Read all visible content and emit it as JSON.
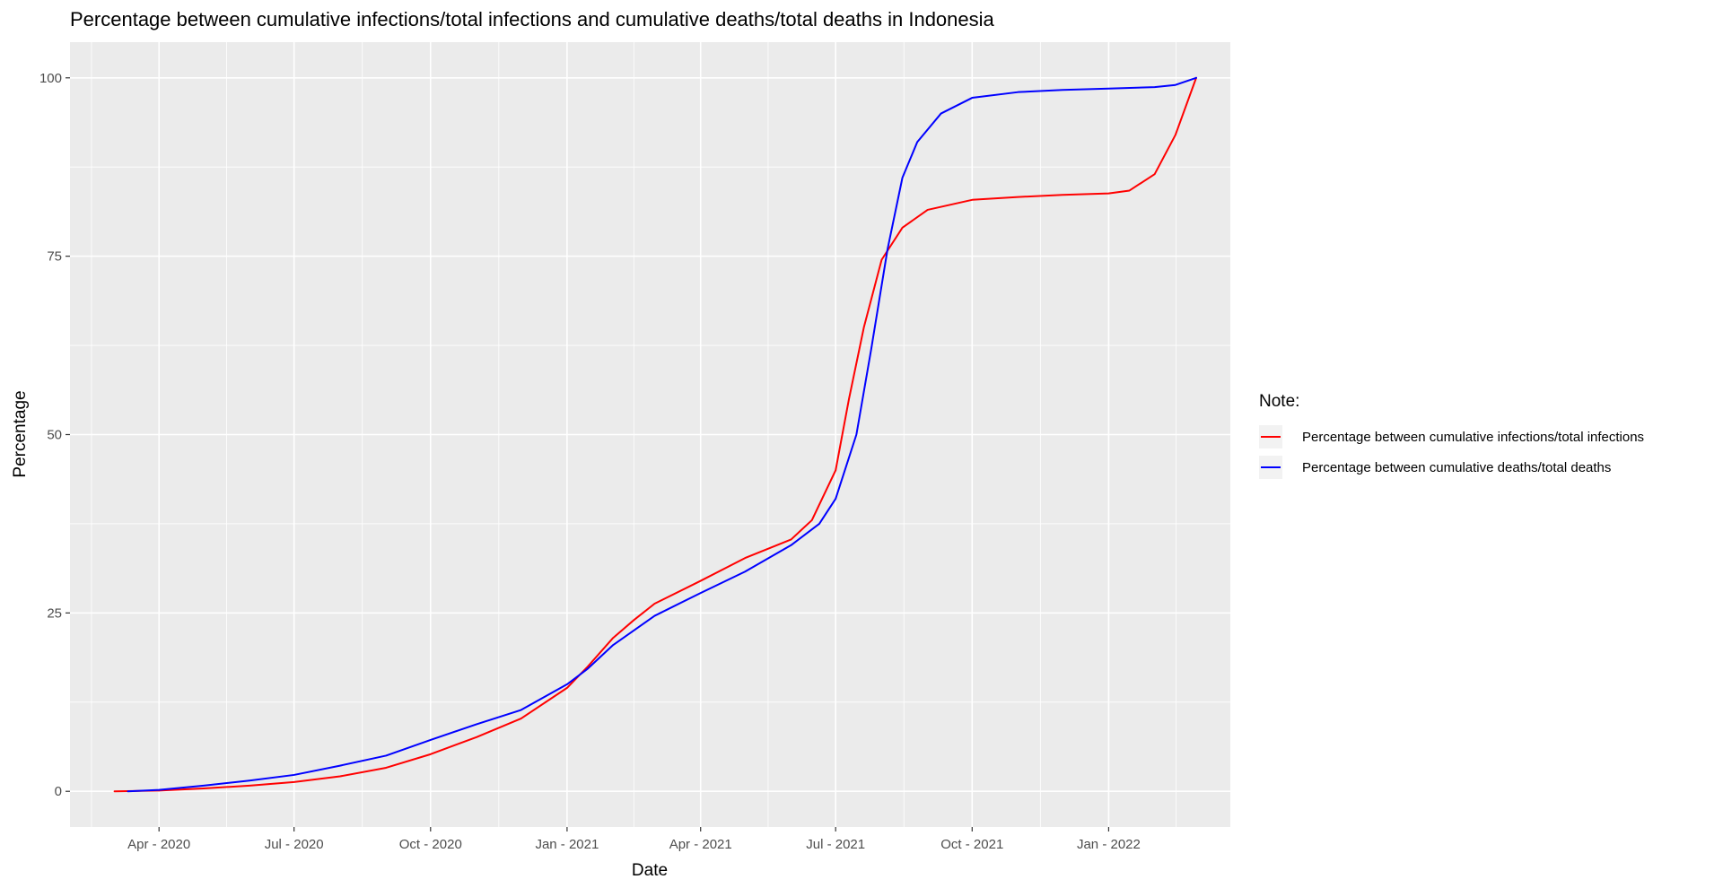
{
  "chart_data": {
    "type": "line",
    "title": "Percentage between cumulative infections/total infections and cumulative deaths/total deaths in Indonesia",
    "xlabel": "Date",
    "ylabel": "Percentage",
    "xlim": [
      "2020-02-01",
      "2022-03-24"
    ],
    "ylim": [
      -5,
      105
    ],
    "x_ticks": [
      {
        "date": "2020-04-01",
        "label": "Apr - 2020"
      },
      {
        "date": "2020-07-01",
        "label": "Jul - 2020"
      },
      {
        "date": "2020-10-01",
        "label": "Oct - 2020"
      },
      {
        "date": "2021-01-01",
        "label": "Jan - 2021"
      },
      {
        "date": "2021-04-01",
        "label": "Apr - 2021"
      },
      {
        "date": "2021-07-01",
        "label": "Jul - 2021"
      },
      {
        "date": "2021-10-01",
        "label": "Oct - 2021"
      },
      {
        "date": "2022-01-01",
        "label": "Jan - 2022"
      }
    ],
    "y_ticks": [
      0,
      25,
      50,
      75,
      100
    ],
    "grid": true,
    "panel_background": "#ebebeb",
    "legend": {
      "title": "Note:",
      "position": "right"
    },
    "series": [
      {
        "name": "Percentage between cumulative infections/total infections",
        "color": "#ff0000",
        "points": [
          {
            "x": "2020-03-02",
            "y": 0
          },
          {
            "x": "2020-04-01",
            "y": 0.1
          },
          {
            "x": "2020-05-01",
            "y": 0.4
          },
          {
            "x": "2020-06-01",
            "y": 0.8
          },
          {
            "x": "2020-07-01",
            "y": 1.3
          },
          {
            "x": "2020-08-01",
            "y": 2.1
          },
          {
            "x": "2020-09-01",
            "y": 3.3
          },
          {
            "x": "2020-10-01",
            "y": 5.2
          },
          {
            "x": "2020-11-01",
            "y": 7.6
          },
          {
            "x": "2020-12-01",
            "y": 10.2
          },
          {
            "x": "2021-01-01",
            "y": 14.5
          },
          {
            "x": "2021-01-15",
            "y": 17.5
          },
          {
            "x": "2021-02-01",
            "y": 21.5
          },
          {
            "x": "2021-02-15",
            "y": 24.0
          },
          {
            "x": "2021-03-01",
            "y": 26.3
          },
          {
            "x": "2021-04-01",
            "y": 29.5
          },
          {
            "x": "2021-05-01",
            "y": 32.7
          },
          {
            "x": "2021-06-01",
            "y": 35.3
          },
          {
            "x": "2021-06-15",
            "y": 38.0
          },
          {
            "x": "2021-07-01",
            "y": 45.0
          },
          {
            "x": "2021-07-10",
            "y": 55.0
          },
          {
            "x": "2021-07-20",
            "y": 65.0
          },
          {
            "x": "2021-08-01",
            "y": 74.5
          },
          {
            "x": "2021-08-15",
            "y": 79.0
          },
          {
            "x": "2021-09-01",
            "y": 81.5
          },
          {
            "x": "2021-10-01",
            "y": 82.9
          },
          {
            "x": "2021-11-01",
            "y": 83.3
          },
          {
            "x": "2021-12-01",
            "y": 83.6
          },
          {
            "x": "2022-01-01",
            "y": 83.8
          },
          {
            "x": "2022-01-15",
            "y": 84.2
          },
          {
            "x": "2022-02-01",
            "y": 86.5
          },
          {
            "x": "2022-02-15",
            "y": 92.0
          },
          {
            "x": "2022-03-01",
            "y": 100
          }
        ]
      },
      {
        "name": "Percentage between cumulative deaths/total deaths",
        "color": "#0000ff",
        "points": [
          {
            "x": "2020-03-11",
            "y": 0
          },
          {
            "x": "2020-04-01",
            "y": 0.2
          },
          {
            "x": "2020-05-01",
            "y": 0.8
          },
          {
            "x": "2020-06-01",
            "y": 1.5
          },
          {
            "x": "2020-07-01",
            "y": 2.3
          },
          {
            "x": "2020-08-01",
            "y": 3.6
          },
          {
            "x": "2020-09-01",
            "y": 5.0
          },
          {
            "x": "2020-10-01",
            "y": 7.2
          },
          {
            "x": "2020-11-01",
            "y": 9.4
          },
          {
            "x": "2020-12-01",
            "y": 11.4
          },
          {
            "x": "2021-01-01",
            "y": 15.0
          },
          {
            "x": "2021-01-15",
            "y": 17.2
          },
          {
            "x": "2021-02-01",
            "y": 20.5
          },
          {
            "x": "2021-03-01",
            "y": 24.6
          },
          {
            "x": "2021-04-01",
            "y": 27.8
          },
          {
            "x": "2021-05-01",
            "y": 30.8
          },
          {
            "x": "2021-06-01",
            "y": 34.5
          },
          {
            "x": "2021-06-20",
            "y": 37.5
          },
          {
            "x": "2021-07-01",
            "y": 41.0
          },
          {
            "x": "2021-07-15",
            "y": 50.0
          },
          {
            "x": "2021-07-25",
            "y": 62.0
          },
          {
            "x": "2021-08-05",
            "y": 76.0
          },
          {
            "x": "2021-08-15",
            "y": 86.0
          },
          {
            "x": "2021-08-25",
            "y": 91.0
          },
          {
            "x": "2021-09-10",
            "y": 95.0
          },
          {
            "x": "2021-10-01",
            "y": 97.2
          },
          {
            "x": "2021-11-01",
            "y": 98.0
          },
          {
            "x": "2021-12-01",
            "y": 98.3
          },
          {
            "x": "2022-01-01",
            "y": 98.5
          },
          {
            "x": "2022-02-01",
            "y": 98.7
          },
          {
            "x": "2022-02-15",
            "y": 99.0
          },
          {
            "x": "2022-03-01",
            "y": 100
          }
        ]
      }
    ]
  }
}
